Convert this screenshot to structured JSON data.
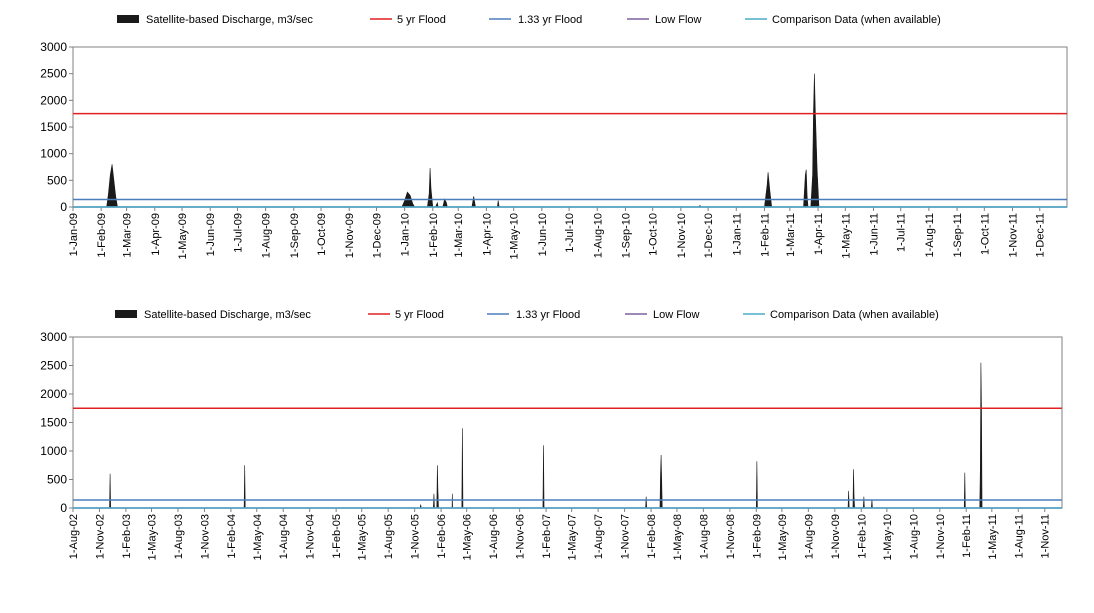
{
  "legend": {
    "items": [
      {
        "label": "Satellite-based Discharge, m3/sec",
        "kind": "area",
        "color": "#1a1a1a"
      },
      {
        "label": "5 yr Flood",
        "kind": "line",
        "color": "#e02020"
      },
      {
        "label": "1.33 yr Flood",
        "kind": "line",
        "color": "#4a7ebb"
      },
      {
        "label": "Low Flow",
        "kind": "line",
        "color": "#7d60a0"
      },
      {
        "label": "Comparison Data (when available)",
        "kind": "line",
        "color": "#4bacc6"
      }
    ]
  },
  "chart_data": [
    {
      "type": "area",
      "title": "",
      "xlabel": "",
      "ylabel": "",
      "ylim": [
        0,
        3000
      ],
      "yticks": [
        "0",
        "500",
        "1000",
        "1500",
        "2000",
        "2500",
        "3000"
      ],
      "xlim": [
        "2009-01-01",
        "2011-12-31"
      ],
      "xticks": [
        "1-Jan-09",
        "1-Feb-09",
        "1-Mar-09",
        "1-Apr-09",
        "1-May-09",
        "1-Jun-09",
        "1-Jul-09",
        "1-Aug-09",
        "1-Sep-09",
        "1-Oct-09",
        "1-Nov-09",
        "1-Dec-09",
        "1-Jan-10",
        "1-Feb-10",
        "1-Mar-10",
        "1-Apr-10",
        "1-May-10",
        "1-Jun-10",
        "1-Jul-10",
        "1-Aug-10",
        "1-Sep-10",
        "1-Oct-10",
        "1-Nov-10",
        "1-Dec-10",
        "1-Jan-11",
        "1-Feb-11",
        "1-Mar-11",
        "1-Apr-11",
        "1-May-11",
        "1-Jun-11",
        "1-Jul-11",
        "1-Aug-11",
        "1-Sep-11",
        "1-Oct-11",
        "1-Nov-11",
        "1-Dec-11"
      ],
      "xtick_dates": [
        "2009-01-01",
        "2009-02-01",
        "2009-03-01",
        "2009-04-01",
        "2009-05-01",
        "2009-06-01",
        "2009-07-01",
        "2009-08-01",
        "2009-09-01",
        "2009-10-01",
        "2009-11-01",
        "2009-12-01",
        "2010-01-01",
        "2010-02-01",
        "2010-03-01",
        "2010-04-01",
        "2010-05-01",
        "2010-06-01",
        "2010-07-01",
        "2010-08-01",
        "2010-09-01",
        "2010-10-01",
        "2010-11-01",
        "2010-12-01",
        "2011-01-01",
        "2011-02-01",
        "2011-03-01",
        "2011-04-01",
        "2011-05-01",
        "2011-06-01",
        "2011-07-01",
        "2011-08-01",
        "2011-09-01",
        "2011-10-01",
        "2011-11-01",
        "2011-12-01"
      ],
      "series": [
        {
          "name": "Satellite-based Discharge, m3/sec",
          "color": "#1a1a1a",
          "points": [
            [
              "2009-01-01",
              0
            ],
            [
              "2009-02-07",
              0
            ],
            [
              "2009-02-09",
              250
            ],
            [
              "2009-02-11",
              600
            ],
            [
              "2009-02-13",
              800
            ],
            [
              "2009-02-15",
              500
            ],
            [
              "2009-02-17",
              200
            ],
            [
              "2009-02-19",
              0
            ],
            [
              "2009-12-29",
              0
            ],
            [
              "2010-01-01",
              120
            ],
            [
              "2010-01-04",
              280
            ],
            [
              "2010-01-07",
              220
            ],
            [
              "2010-01-10",
              60
            ],
            [
              "2010-01-12",
              0
            ],
            [
              "2010-01-26",
              0
            ],
            [
              "2010-01-28",
              250
            ],
            [
              "2010-01-29",
              730
            ],
            [
              "2010-01-30",
              350
            ],
            [
              "2010-02-01",
              0
            ],
            [
              "2010-02-04",
              0
            ],
            [
              "2010-02-06",
              80
            ],
            [
              "2010-02-07",
              0
            ],
            [
              "2010-02-12",
              0
            ],
            [
              "2010-02-14",
              150
            ],
            [
              "2010-02-16",
              80
            ],
            [
              "2010-02-17",
              0
            ],
            [
              "2010-03-16",
              0
            ],
            [
              "2010-03-18",
              200
            ],
            [
              "2010-03-20",
              0
            ],
            [
              "2010-04-13",
              0
            ],
            [
              "2010-04-14",
              120
            ],
            [
              "2010-04-15",
              0
            ],
            [
              "2010-11-21",
              0
            ],
            [
              "2010-11-22",
              30
            ],
            [
              "2010-11-23",
              0
            ],
            [
              "2011-02-01",
              0
            ],
            [
              "2011-02-04",
              420
            ],
            [
              "2011-02-05",
              650
            ],
            [
              "2011-02-07",
              300
            ],
            [
              "2011-02-09",
              0
            ],
            [
              "2011-03-16",
              0
            ],
            [
              "2011-03-18",
              600
            ],
            [
              "2011-03-19",
              700
            ],
            [
              "2011-03-20",
              200
            ],
            [
              "2011-03-21",
              0
            ],
            [
              "2011-03-24",
              0
            ],
            [
              "2011-03-26",
              600
            ],
            [
              "2011-03-27",
              1800
            ],
            [
              "2011-03-28",
              2500
            ],
            [
              "2011-03-29",
              1800
            ],
            [
              "2011-03-31",
              700
            ],
            [
              "2011-04-02",
              0
            ],
            [
              "2011-12-31",
              0
            ]
          ]
        },
        {
          "name": "5 yr Flood",
          "color": "#e02020",
          "constant": 1750
        },
        {
          "name": "1.33 yr Flood",
          "color": "#4a7ebb",
          "constant": 140
        },
        {
          "name": "Low Flow",
          "color": "#7d60a0",
          "constant": 0
        },
        {
          "name": "Comparison Data (when available)",
          "color": "#4bacc6",
          "constant": 0
        }
      ]
    },
    {
      "type": "area",
      "title": "",
      "xlabel": "",
      "ylabel": "",
      "ylim": [
        0,
        3000
      ],
      "yticks": [
        "0",
        "500",
        "1000",
        "1500",
        "2000",
        "2500",
        "3000"
      ],
      "xlim": [
        "2002-08-01",
        "2011-12-31"
      ],
      "xticks": [
        "1-Aug-02",
        "1-Nov-02",
        "1-Feb-03",
        "1-May-03",
        "1-Aug-03",
        "1-Nov-03",
        "1-Feb-04",
        "1-May-04",
        "1-Aug-04",
        "1-Nov-04",
        "1-Feb-05",
        "1-May-05",
        "1-Aug-05",
        "1-Nov-05",
        "1-Feb-06",
        "1-May-06",
        "1-Aug-06",
        "1-Nov-06",
        "1-Feb-07",
        "1-May-07",
        "1-Aug-07",
        "1-Nov-07",
        "1-Feb-08",
        "1-May-08",
        "1-Aug-08",
        "1-Nov-08",
        "1-Feb-09",
        "1-May-09",
        "1-Aug-09",
        "1-Nov-09",
        "1-Feb-10",
        "1-May-10",
        "1-Aug-10",
        "1-Nov-10",
        "1-Feb-11",
        "1-May-11",
        "1-Aug-11",
        "1-Nov-11"
      ],
      "xtick_dates": [
        "2002-08-01",
        "2002-11-01",
        "2003-02-01",
        "2003-05-01",
        "2003-08-01",
        "2003-11-01",
        "2004-02-01",
        "2004-05-01",
        "2004-08-01",
        "2004-11-01",
        "2005-02-01",
        "2005-05-01",
        "2005-08-01",
        "2005-11-01",
        "2006-02-01",
        "2006-05-01",
        "2006-08-01",
        "2006-11-01",
        "2007-02-01",
        "2007-05-01",
        "2007-08-01",
        "2007-11-01",
        "2008-02-01",
        "2008-05-01",
        "2008-08-01",
        "2008-11-01",
        "2009-02-01",
        "2009-05-01",
        "2009-08-01",
        "2009-11-01",
        "2010-02-01",
        "2010-05-01",
        "2010-08-01",
        "2010-11-01",
        "2011-02-01",
        "2011-05-01",
        "2011-08-01",
        "2011-11-01"
      ],
      "series": [
        {
          "name": "Satellite-based Discharge, m3/sec",
          "color": "#1a1a1a",
          "points": [
            [
              "2002-08-01",
              0
            ],
            [
              "2002-12-06",
              0
            ],
            [
              "2002-12-08",
              600
            ],
            [
              "2002-12-10",
              0
            ],
            [
              "2004-03-18",
              0
            ],
            [
              "2004-03-20",
              750
            ],
            [
              "2004-03-22",
              0
            ],
            [
              "2005-11-20",
              0
            ],
            [
              "2005-11-22",
              60
            ],
            [
              "2005-11-24",
              0
            ],
            [
              "2006-01-05",
              0
            ],
            [
              "2006-01-07",
              250
            ],
            [
              "2006-01-09",
              0
            ],
            [
              "2006-01-17",
              0
            ],
            [
              "2006-01-19",
              750
            ],
            [
              "2006-01-21",
              300
            ],
            [
              "2006-01-23",
              0
            ],
            [
              "2006-03-11",
              0
            ],
            [
              "2006-03-12",
              250
            ],
            [
              "2006-03-13",
              0
            ],
            [
              "2006-04-14",
              0
            ],
            [
              "2006-04-16",
              1400
            ],
            [
              "2006-04-18",
              0
            ],
            [
              "2007-01-21",
              0
            ],
            [
              "2007-01-23",
              1100
            ],
            [
              "2007-01-25",
              0
            ],
            [
              "2008-01-13",
              0
            ],
            [
              "2008-01-15",
              200
            ],
            [
              "2008-01-17",
              0
            ],
            [
              "2008-03-03",
              0
            ],
            [
              "2008-03-05",
              600
            ],
            [
              "2008-03-07",
              930
            ],
            [
              "2008-03-09",
              500
            ],
            [
              "2008-03-11",
              0
            ],
            [
              "2009-02-01",
              0
            ],
            [
              "2009-02-03",
              820
            ],
            [
              "2009-02-05",
              0
            ],
            [
              "2009-12-17",
              0
            ],
            [
              "2009-12-19",
              300
            ],
            [
              "2009-12-21",
              0
            ],
            [
              "2010-01-03",
              0
            ],
            [
              "2010-01-05",
              680
            ],
            [
              "2010-01-07",
              200
            ],
            [
              "2010-01-09",
              0
            ],
            [
              "2010-02-08",
              0
            ],
            [
              "2010-02-10",
              200
            ],
            [
              "2010-02-12",
              0
            ],
            [
              "2010-03-08",
              0
            ],
            [
              "2010-03-10",
              150
            ],
            [
              "2010-03-12",
              0
            ],
            [
              "2011-01-25",
              0
            ],
            [
              "2011-01-27",
              620
            ],
            [
              "2011-01-29",
              0
            ],
            [
              "2011-03-20",
              0
            ],
            [
              "2011-03-22",
              700
            ],
            [
              "2011-03-24",
              2550
            ],
            [
              "2011-03-26",
              1800
            ],
            [
              "2011-03-28",
              0
            ],
            [
              "2011-12-31",
              0
            ]
          ]
        },
        {
          "name": "5 yr Flood",
          "color": "#e02020",
          "constant": 1750
        },
        {
          "name": "1.33 yr Flood",
          "color": "#4a7ebb",
          "constant": 140
        },
        {
          "name": "Low Flow",
          "color": "#7d60a0",
          "constant": 0
        },
        {
          "name": "Comparison Data (when available)",
          "color": "#4bacc6",
          "constant": 0
        }
      ]
    }
  ]
}
